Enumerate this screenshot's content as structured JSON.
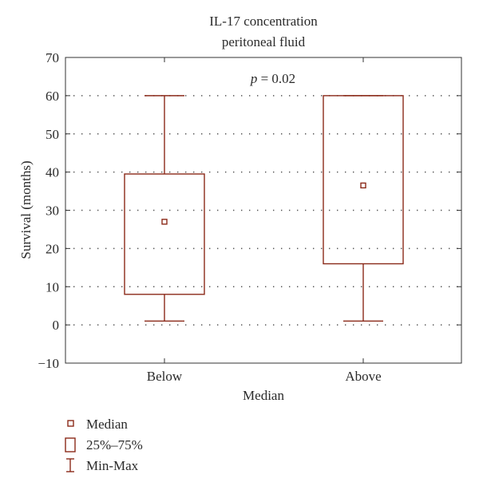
{
  "chart_data": {
    "type": "box",
    "title": "IL-17 concentration",
    "subtitle": "peritoneal fluid",
    "annotation": {
      "italic": "p",
      "text": " = 0.02"
    },
    "xlabel": "Median",
    "ylabel": "Survival (months)",
    "ylim": [
      -10,
      70
    ],
    "yticks": [
      -10,
      0,
      10,
      20,
      30,
      40,
      50,
      60,
      70
    ],
    "grid": "horizontal dotted",
    "categories": [
      "Below",
      "Above"
    ],
    "boxes": [
      {
        "category": "Below",
        "min": 1,
        "q1": 8,
        "median": 27,
        "q3": 39.5,
        "max": 60
      },
      {
        "category": "Above",
        "min": 1,
        "q1": 16,
        "median": 36.5,
        "q3": 60,
        "max": 60
      }
    ],
    "legend": {
      "placement": "bottom-left",
      "items": [
        {
          "symbol": "median",
          "label": "Median"
        },
        {
          "symbol": "box",
          "label": "25%–75%"
        },
        {
          "symbol": "whisker",
          "label": "Min-Max"
        }
      ]
    },
    "colors": {
      "series": "#8b2a1a",
      "axis": "#333333",
      "grid": "#555555"
    }
  }
}
